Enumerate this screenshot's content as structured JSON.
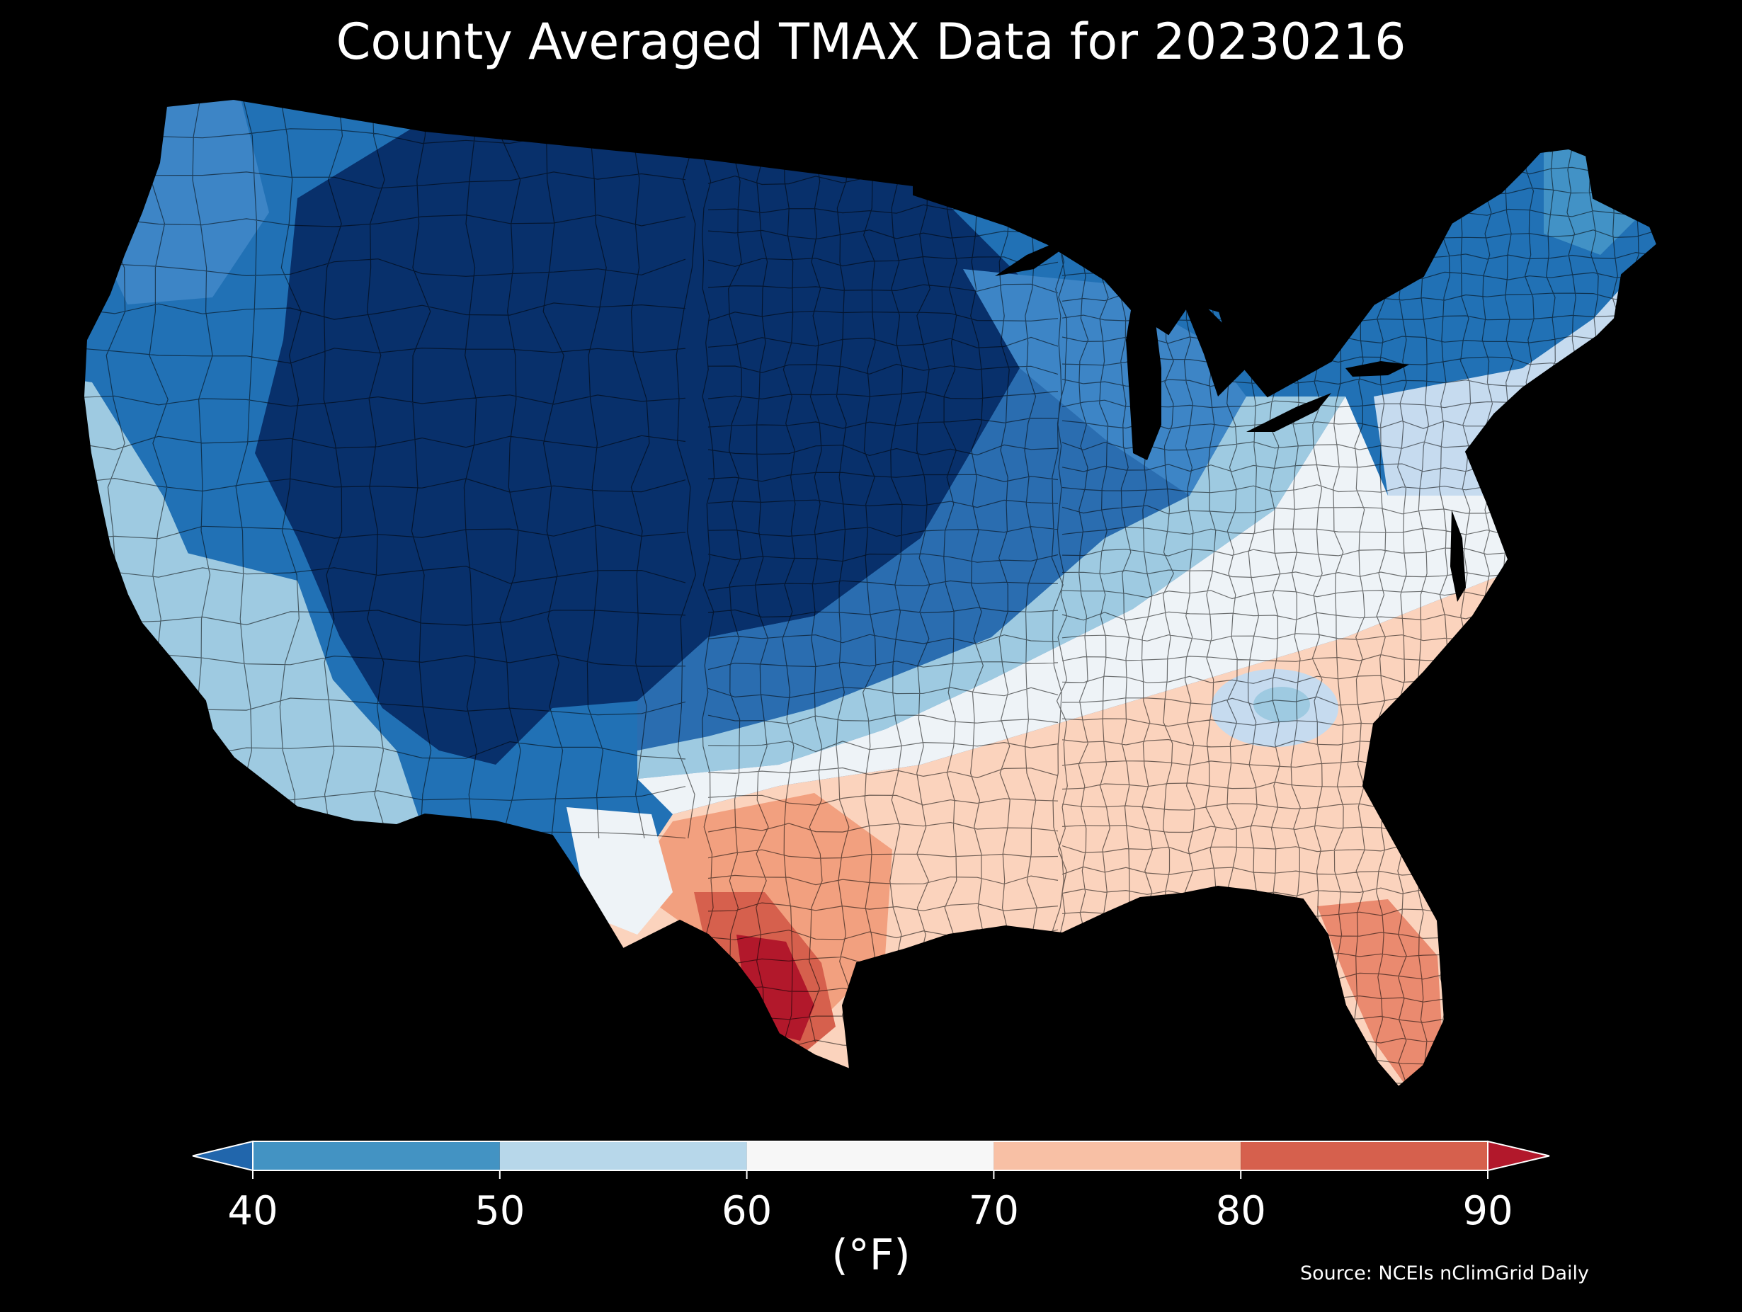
{
  "title": "County Averaged TMAX Data for 20230216",
  "colorbar": {
    "ticks": [
      40,
      50,
      60,
      70,
      80,
      90
    ],
    "bins": [
      {
        "from": 40,
        "to": 50,
        "color": "#4393c3"
      },
      {
        "from": 50,
        "to": 60,
        "color": "#b7d7ea"
      },
      {
        "from": 60,
        "to": 70,
        "color": "#f7f7f7"
      },
      {
        "from": 70,
        "to": 80,
        "color": "#f8c0a5"
      },
      {
        "from": 80,
        "to": 90,
        "color": "#d6604d"
      }
    ],
    "under_color": "#2166ac",
    "over_color": "#b2182b",
    "extend": "both"
  },
  "unit": "(°F)",
  "source": "Source: NCEIs nClimGrid Daily",
  "palette": {
    "darkest_blue": "#08306b",
    "dark_blue": "#1f5fa8",
    "mid_blue": "#3d85c6",
    "light_blue": "#9ecae1",
    "pale_blue": "#d6e8f3",
    "white": "#f7f7f7",
    "peach": "#fbd3bd",
    "salmon": "#f2a07f",
    "red": "#d6604d",
    "dark_red": "#b2182b",
    "background": "#000000",
    "county_border": "#000000"
  }
}
